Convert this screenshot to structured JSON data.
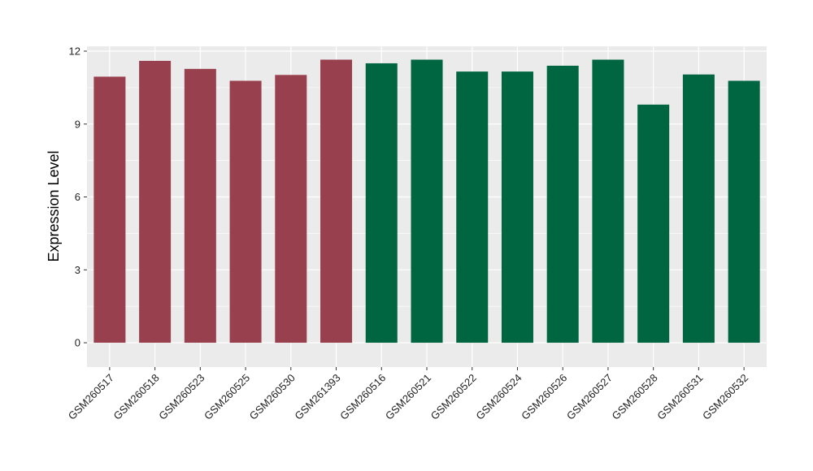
{
  "chart_data": {
    "type": "bar",
    "title": "",
    "xlabel": "",
    "ylabel": "Expression Level",
    "ylim": [
      -1,
      12.2
    ],
    "yticks": [
      0,
      3,
      6,
      9,
      12
    ],
    "grid": true,
    "legend": "none",
    "categories": [
      "GSM260517",
      "GSM260518",
      "GSM260523",
      "GSM260525",
      "GSM260530",
      "GSM261393",
      "GSM260516",
      "GSM260521",
      "GSM260522",
      "GSM260524",
      "GSM260526",
      "GSM260527",
      "GSM260528",
      "GSM260531",
      "GSM260532"
    ],
    "values": [
      10.95,
      11.6,
      11.27,
      10.78,
      11.02,
      11.65,
      11.5,
      11.65,
      11.16,
      11.16,
      11.4,
      11.65,
      9.8,
      11.04,
      10.78
    ],
    "groups": [
      0,
      0,
      0,
      0,
      0,
      0,
      1,
      1,
      1,
      1,
      1,
      1,
      1,
      1,
      1
    ],
    "colors": [
      "#99404f",
      "#006642"
    ],
    "panel_color": "#ebebeb",
    "grid_color": "#ffffff"
  }
}
